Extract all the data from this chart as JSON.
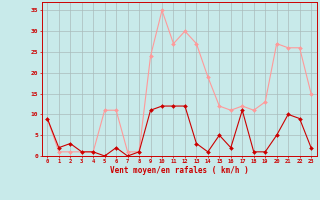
{
  "x": [
    0,
    1,
    2,
    3,
    4,
    5,
    6,
    7,
    8,
    9,
    10,
    11,
    12,
    13,
    14,
    15,
    16,
    17,
    18,
    19,
    20,
    21,
    22,
    23
  ],
  "y_moyen": [
    9,
    2,
    3,
    1,
    1,
    0,
    2,
    0,
    1,
    11,
    12,
    12,
    12,
    3,
    1,
    5,
    2,
    11,
    1,
    1,
    5,
    10,
    9,
    2
  ],
  "y_rafales": [
    9,
    1,
    1,
    1,
    1,
    11,
    11,
    1,
    1,
    24,
    35,
    27,
    30,
    27,
    19,
    12,
    11,
    12,
    11,
    13,
    27,
    26,
    26,
    15
  ],
  "bg_color": "#c8eaea",
  "line_color_moyen": "#cc0000",
  "line_color_rafales": "#ff9999",
  "grid_color": "#aabbbb",
  "xlabel": "Vent moyen/en rafales ( km/h )",
  "xlabel_color": "#cc0000",
  "tick_color": "#cc0000",
  "ylim": [
    0,
    37
  ],
  "yticks": [
    0,
    5,
    10,
    15,
    20,
    25,
    30,
    35
  ],
  "xlim": [
    -0.5,
    23.5
  ]
}
